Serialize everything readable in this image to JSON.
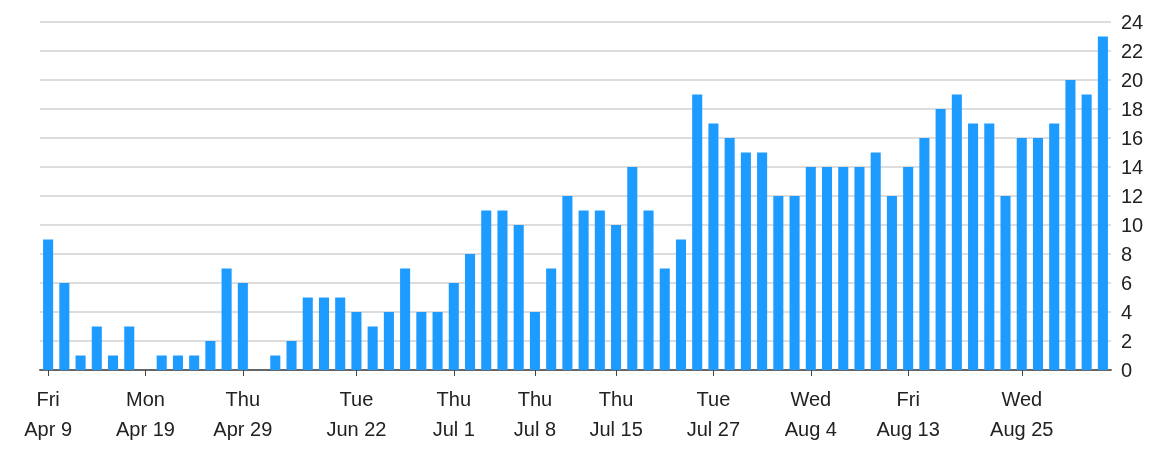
{
  "chart_data": {
    "type": "bar",
    "categories": [
      "Fri\nApr 9",
      null,
      null,
      null,
      null,
      null,
      "Mon\nApr 19",
      null,
      null,
      null,
      null,
      null,
      "Thu\nApr 29",
      null,
      null,
      null,
      null,
      null,
      null,
      "Tue\nJun 22",
      null,
      null,
      null,
      null,
      null,
      "Thu\nJul 1",
      null,
      null,
      null,
      null,
      "Thu\nJul 8",
      null,
      null,
      null,
      null,
      "Thu\nJul 15",
      null,
      null,
      null,
      null,
      null,
      "Tue\nJul 27",
      null,
      null,
      null,
      null,
      null,
      "Wed\nAug 4",
      null,
      null,
      null,
      null,
      null,
      "Fri\nAug 13",
      null,
      null,
      null,
      null,
      null,
      null,
      "Wed\nAug 25",
      null,
      null,
      null,
      null,
      null
    ],
    "values": [
      9,
      6,
      1,
      3,
      1,
      3,
      0,
      1,
      1,
      1,
      2,
      7,
      6,
      0,
      1,
      2,
      5,
      5,
      5,
      4,
      3,
      4,
      7,
      4,
      4,
      6,
      8,
      11,
      11,
      10,
      4,
      7,
      12,
      11,
      11,
      10,
      14,
      11,
      7,
      9,
      19,
      17,
      16,
      15,
      15,
      12,
      12,
      14,
      14,
      14,
      14,
      15,
      12,
      14,
      16,
      18,
      19,
      17,
      17,
      12,
      16,
      16,
      17,
      20,
      19,
      23
    ],
    "color": "#1e9bff",
    "ylim": [
      0,
      24
    ],
    "yticks": [
      0,
      2,
      4,
      6,
      8,
      10,
      12,
      14,
      16,
      18,
      20,
      22,
      24
    ],
    "grid": "y"
  }
}
